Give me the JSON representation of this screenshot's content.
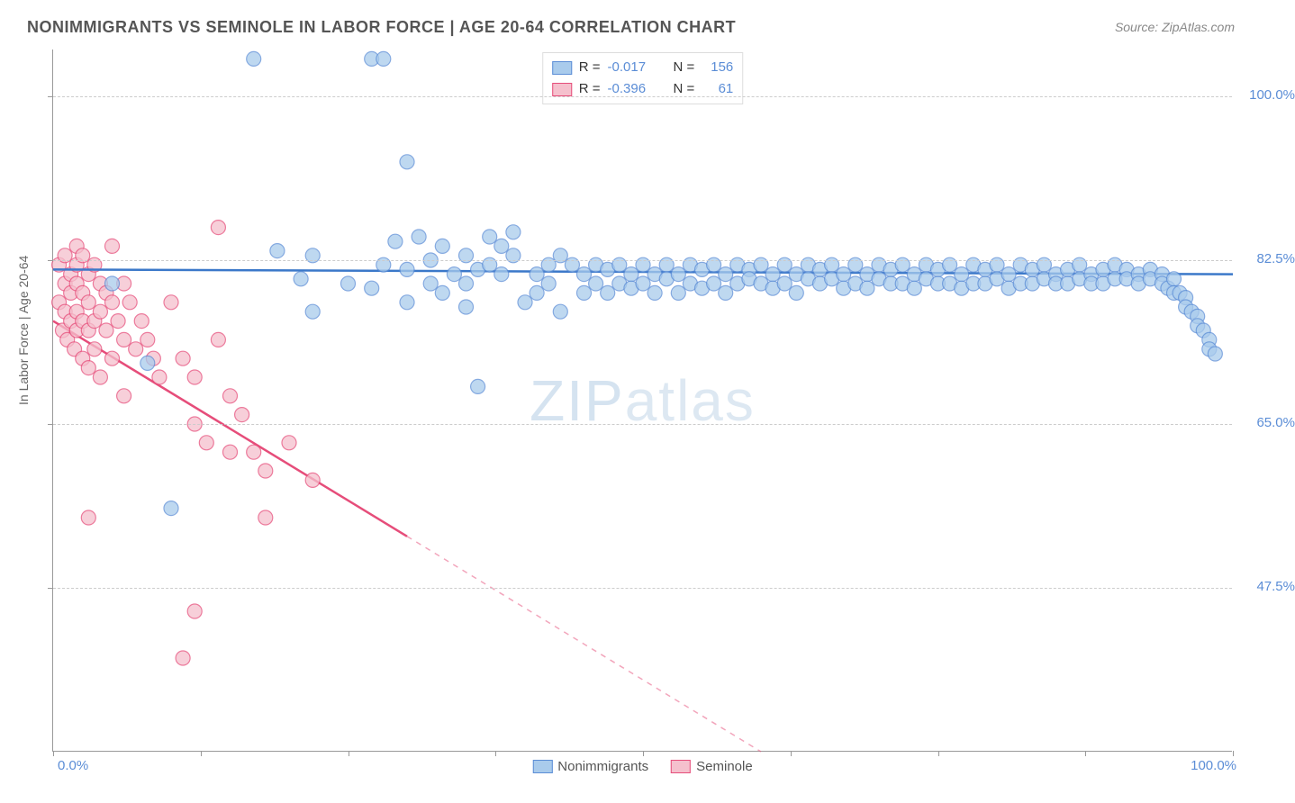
{
  "title": "NONIMMIGRANTS VS SEMINOLE IN LABOR FORCE | AGE 20-64 CORRELATION CHART",
  "source": "Source: ZipAtlas.com",
  "ylabel": "In Labor Force | Age 20-64",
  "watermark_bold": "ZIP",
  "watermark_thin": "atlas",
  "chart": {
    "type": "scatter-correlation",
    "xlim": [
      0,
      100
    ],
    "ylim": [
      30,
      105
    ],
    "x_label_min": "0.0%",
    "x_label_max": "100.0%",
    "ytick_values": [
      47.5,
      65.0,
      82.5,
      100.0
    ],
    "ytick_labels": [
      "47.5%",
      "65.0%",
      "82.5%",
      "100.0%"
    ],
    "xtick_positions": [
      0,
      12.5,
      25,
      37.5,
      50,
      62.5,
      75,
      87.5,
      100
    ],
    "grid_color": "#cccccc",
    "background": "#ffffff",
    "series": [
      {
        "name": "Nonimmigrants",
        "fill": "#a9cbec",
        "stroke": "#5b8dd6",
        "line_color": "#3b78c9",
        "line_width": 2.5,
        "marker_radius": 8,
        "marker_opacity": 0.75,
        "R": "-0.017",
        "N": "156",
        "trend": {
          "x1": 0,
          "y1": 81.5,
          "x2": 100,
          "y2": 81.0,
          "dash_after": 100
        },
        "points": [
          [
            17,
            104
          ],
          [
            27,
            104
          ],
          [
            28,
            104
          ],
          [
            30,
            93
          ],
          [
            5,
            80
          ],
          [
            8,
            71.5
          ],
          [
            10,
            56
          ],
          [
            19,
            83.5
          ],
          [
            21,
            80.5
          ],
          [
            22,
            83
          ],
          [
            22,
            77
          ],
          [
            25,
            80
          ],
          [
            27,
            79.5
          ],
          [
            28,
            82
          ],
          [
            29,
            84.5
          ],
          [
            30,
            81.5
          ],
          [
            30,
            78
          ],
          [
            31,
            85
          ],
          [
            32,
            82.5
          ],
          [
            32,
            80
          ],
          [
            33,
            84
          ],
          [
            33,
            79
          ],
          [
            34,
            81
          ],
          [
            35,
            83
          ],
          [
            35,
            80
          ],
          [
            35,
            77.5
          ],
          [
            36,
            81.5
          ],
          [
            36,
            69
          ],
          [
            37,
            85
          ],
          [
            37,
            82
          ],
          [
            38,
            84
          ],
          [
            38,
            81
          ],
          [
            39,
            85.5
          ],
          [
            39,
            83
          ],
          [
            40,
            78
          ],
          [
            41,
            81
          ],
          [
            41,
            79
          ],
          [
            42,
            82
          ],
          [
            42,
            80
          ],
          [
            43,
            83
          ],
          [
            43,
            77
          ],
          [
            44,
            82
          ],
          [
            45,
            81
          ],
          [
            45,
            79
          ],
          [
            46,
            82
          ],
          [
            46,
            80
          ],
          [
            47,
            81.5
          ],
          [
            47,
            79
          ],
          [
            48,
            82
          ],
          [
            48,
            80
          ],
          [
            49,
            81
          ],
          [
            49,
            79.5
          ],
          [
            50,
            82
          ],
          [
            50,
            80
          ],
          [
            51,
            81
          ],
          [
            51,
            79
          ],
          [
            52,
            82
          ],
          [
            52,
            80.5
          ],
          [
            53,
            81
          ],
          [
            53,
            79
          ],
          [
            54,
            82
          ],
          [
            54,
            80
          ],
          [
            55,
            81.5
          ],
          [
            55,
            79.5
          ],
          [
            56,
            82
          ],
          [
            56,
            80
          ],
          [
            57,
            81
          ],
          [
            57,
            79
          ],
          [
            58,
            82
          ],
          [
            58,
            80
          ],
          [
            59,
            81.5
          ],
          [
            59,
            80.5
          ],
          [
            60,
            82
          ],
          [
            60,
            80
          ],
          [
            61,
            81
          ],
          [
            61,
            79.5
          ],
          [
            62,
            82
          ],
          [
            62,
            80
          ],
          [
            63,
            81
          ],
          [
            63,
            79
          ],
          [
            64,
            82
          ],
          [
            64,
            80.5
          ],
          [
            65,
            81.5
          ],
          [
            65,
            80
          ],
          [
            66,
            82
          ],
          [
            66,
            80.5
          ],
          [
            67,
            81
          ],
          [
            67,
            79.5
          ],
          [
            68,
            82
          ],
          [
            68,
            80
          ],
          [
            69,
            81
          ],
          [
            69,
            79.5
          ],
          [
            70,
            82
          ],
          [
            70,
            80.5
          ],
          [
            71,
            81.5
          ],
          [
            71,
            80
          ],
          [
            72,
            82
          ],
          [
            72,
            80
          ],
          [
            73,
            81
          ],
          [
            73,
            79.5
          ],
          [
            74,
            82
          ],
          [
            74,
            80.5
          ],
          [
            75,
            81.5
          ],
          [
            75,
            80
          ],
          [
            76,
            82
          ],
          [
            76,
            80
          ],
          [
            77,
            81
          ],
          [
            77,
            79.5
          ],
          [
            78,
            82
          ],
          [
            78,
            80
          ],
          [
            79,
            81.5
          ],
          [
            79,
            80
          ],
          [
            80,
            82
          ],
          [
            80,
            80.5
          ],
          [
            81,
            81
          ],
          [
            81,
            79.5
          ],
          [
            82,
            82
          ],
          [
            82,
            80
          ],
          [
            83,
            81.5
          ],
          [
            83,
            80
          ],
          [
            84,
            82
          ],
          [
            84,
            80.5
          ],
          [
            85,
            81
          ],
          [
            85,
            80
          ],
          [
            86,
            81.5
          ],
          [
            86,
            80
          ],
          [
            87,
            82
          ],
          [
            87,
            80.5
          ],
          [
            88,
            81
          ],
          [
            88,
            80
          ],
          [
            89,
            81.5
          ],
          [
            89,
            80
          ],
          [
            90,
            82
          ],
          [
            90,
            80.5
          ],
          [
            91,
            81.5
          ],
          [
            91,
            80.5
          ],
          [
            92,
            81
          ],
          [
            92,
            80
          ],
          [
            93,
            81.5
          ],
          [
            93,
            80.5
          ],
          [
            94,
            81
          ],
          [
            94,
            80
          ],
          [
            94.5,
            79.5
          ],
          [
            95,
            80.5
          ],
          [
            95,
            79
          ],
          [
            95.5,
            79
          ],
          [
            96,
            78.5
          ],
          [
            96,
            77.5
          ],
          [
            96.5,
            77
          ],
          [
            97,
            76.5
          ],
          [
            97,
            75.5
          ],
          [
            97.5,
            75
          ],
          [
            98,
            74
          ],
          [
            98,
            73
          ],
          [
            98.5,
            72.5
          ]
        ]
      },
      {
        "name": "Seminole",
        "fill": "#f5c0cd",
        "stroke": "#e64d7a",
        "line_color": "#e64d7a",
        "line_width": 2.5,
        "marker_radius": 8,
        "marker_opacity": 0.75,
        "R": "-0.396",
        "N": "61",
        "trend": {
          "x1": 0,
          "y1": 76,
          "x2": 30,
          "y2": 53,
          "dash_after": 30,
          "dash_x2": 60,
          "dash_y2": 30
        },
        "points": [
          [
            0.5,
            82
          ],
          [
            0.5,
            78
          ],
          [
            0.8,
            75
          ],
          [
            1,
            83
          ],
          [
            1,
            80
          ],
          [
            1,
            77
          ],
          [
            1.2,
            74
          ],
          [
            1.5,
            81
          ],
          [
            1.5,
            79
          ],
          [
            1.5,
            76
          ],
          [
            1.8,
            73
          ],
          [
            2,
            84
          ],
          [
            2,
            82
          ],
          [
            2,
            80
          ],
          [
            2,
            77
          ],
          [
            2,
            75
          ],
          [
            2.5,
            83
          ],
          [
            2.5,
            79
          ],
          [
            2.5,
            76
          ],
          [
            2.5,
            72
          ],
          [
            3,
            81
          ],
          [
            3,
            78
          ],
          [
            3,
            75
          ],
          [
            3,
            71
          ],
          [
            3.5,
            82
          ],
          [
            3.5,
            76
          ],
          [
            3.5,
            73
          ],
          [
            4,
            80
          ],
          [
            4,
            77
          ],
          [
            4,
            70
          ],
          [
            4.5,
            79
          ],
          [
            4.5,
            75
          ],
          [
            5,
            84
          ],
          [
            5,
            78
          ],
          [
            5,
            72
          ],
          [
            5.5,
            76
          ],
          [
            6,
            80
          ],
          [
            6,
            74
          ],
          [
            6,
            68
          ],
          [
            6.5,
            78
          ],
          [
            7,
            73
          ],
          [
            7.5,
            76
          ],
          [
            8,
            74
          ],
          [
            8.5,
            72
          ],
          [
            9,
            70
          ],
          [
            10,
            78
          ],
          [
            11,
            72
          ],
          [
            12,
            70
          ],
          [
            12,
            65
          ],
          [
            13,
            63
          ],
          [
            14,
            86
          ],
          [
            14,
            74
          ],
          [
            15,
            68
          ],
          [
            15,
            62
          ],
          [
            16,
            66
          ],
          [
            17,
            62
          ],
          [
            18,
            55
          ],
          [
            18,
            60
          ],
          [
            20,
            63
          ],
          [
            22,
            59
          ],
          [
            11,
            40
          ],
          [
            12,
            45
          ],
          [
            3,
            55
          ]
        ]
      }
    ]
  }
}
